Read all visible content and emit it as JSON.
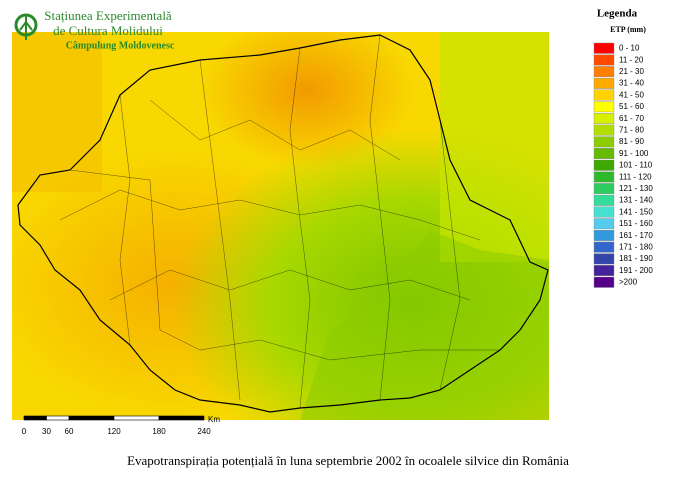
{
  "header": {
    "title_lines": [
      "Stațiunea Experimentală",
      "de Cultura Molidului"
    ],
    "subtitle": "Câmpulung Moldovenesc"
  },
  "legend": {
    "title": "Legenda",
    "unit": "ETP (mm)",
    "items": [
      {
        "label": "0 - 10",
        "color": "#ff0000"
      },
      {
        "label": "11 - 20",
        "color": "#ff4a00"
      },
      {
        "label": "21 - 30",
        "color": "#ff7f00"
      },
      {
        "label": "31 - 40",
        "color": "#ffaa00"
      },
      {
        "label": "41 - 50",
        "color": "#ffd200"
      },
      {
        "label": "51 - 60",
        "color": "#ffff00"
      },
      {
        "label": "61 - 70",
        "color": "#d9ef00"
      },
      {
        "label": "71 - 80",
        "color": "#b2dd00"
      },
      {
        "label": "81 - 90",
        "color": "#8ccc00"
      },
      {
        "label": "91 - 100",
        "color": "#66bb00"
      },
      {
        "label": "101 - 110",
        "color": "#3fa800"
      },
      {
        "label": "111 - 120",
        "color": "#2eb82e"
      },
      {
        "label": "121 - 130",
        "color": "#2ecc60"
      },
      {
        "label": "131 - 140",
        "color": "#33dd99"
      },
      {
        "label": "141 - 150",
        "color": "#44e0d0"
      },
      {
        "label": "151 - 160",
        "color": "#55ccee"
      },
      {
        "label": "161 - 170",
        "color": "#3399dd"
      },
      {
        "label": "171 - 180",
        "color": "#3366cc"
      },
      {
        "label": "181 - 190",
        "color": "#3344aa"
      },
      {
        "label": "191 - 200",
        "color": "#442299"
      },
      {
        "label": ">200",
        "color": "#550088"
      }
    ]
  },
  "scale_bar": {
    "labels": [
      0,
      30,
      60,
      120,
      180,
      240
    ],
    "unit": "Km"
  },
  "caption": "Evapotranspirația potențială în luna septembrie 2002 în ocoalele silvice din România"
}
